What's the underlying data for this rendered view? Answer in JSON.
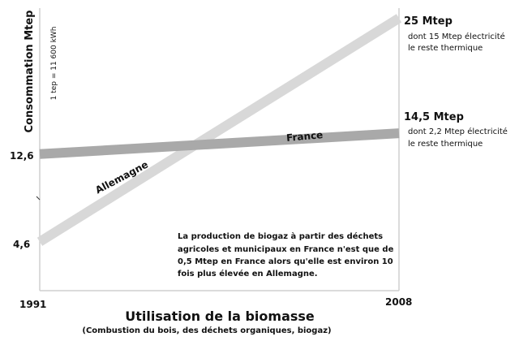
{
  "chart_data": {
    "type": "line",
    "title": "Utilisation de la biomasse",
    "subtitle": "(Combustion du bois, des déchets organiques, biogaz)",
    "ylabel": "Consommation Mtep",
    "unit_note": "1 tep = 11 600 kWh",
    "x": [
      1991,
      2008
    ],
    "x_tick_labels": [
      "1991",
      "2008"
    ],
    "y_tick_labels": [
      "12,6",
      "4,6"
    ],
    "ylim": [
      0,
      25
    ],
    "grid": false,
    "series": [
      {
        "name": "Allemagne",
        "values": [
          4.6,
          25
        ],
        "color": "#d8d8d8",
        "end_label": "25 Mtep",
        "end_detail": [
          "dont 15 Mtep électricité",
          "le reste thermique"
        ]
      },
      {
        "name": "France",
        "values": [
          12.6,
          14.5
        ],
        "color": "#a9a9a9",
        "end_label": "14,5 Mtep",
        "end_detail": [
          "dont 2,2 Mtep électricité",
          "le reste thermique"
        ]
      }
    ],
    "annotation": [
      "La production de biogaz à partir des déchets",
      "agricoles et municipaux en France n'est que de",
      "0,5 Mtep en France alors qu'elle est environ 10",
      "fois plus élevée en Allemagne."
    ]
  }
}
